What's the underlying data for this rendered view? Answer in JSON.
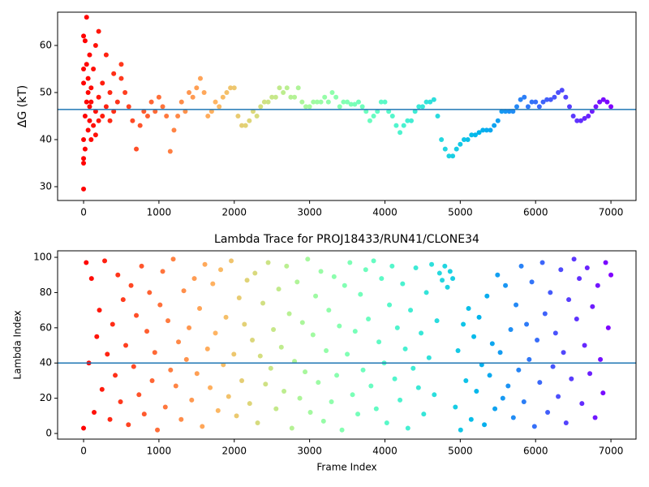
{
  "chart_data": [
    {
      "type": "scatter",
      "ylabel": "ΔG (kT)",
      "colormap": "rainbow_r",
      "xlim": [
        -345,
        7333
      ],
      "ylim": [
        27.07,
        67.07
      ],
      "xticks": [
        0,
        1000,
        2000,
        3000,
        4000,
        5000,
        6000,
        7000
      ],
      "yticks": [
        30,
        40,
        50,
        60
      ],
      "hline": {
        "y": 46.4,
        "color": "#1f77b4"
      },
      "x": [
        0,
        0,
        0,
        0,
        0,
        0,
        0,
        20,
        20,
        20,
        40,
        40,
        40,
        60,
        60,
        60,
        80,
        80,
        80,
        100,
        100,
        100,
        130,
        130,
        160,
        160,
        160,
        200,
        200,
        200,
        250,
        250,
        300,
        300,
        350,
        350,
        400,
        400,
        450,
        500,
        500,
        550,
        600,
        650,
        700,
        750,
        800,
        850,
        900,
        950,
        1000,
        1050,
        1100,
        1150,
        1200,
        1250,
        1300,
        1350,
        1400,
        1450,
        1500,
        1550,
        1600,
        1650,
        1700,
        1750,
        1800,
        1850,
        1900,
        1950,
        2000,
        2050,
        2100,
        2150,
        2200,
        2250,
        2300,
        2350,
        2400,
        2450,
        2500,
        2550,
        2600,
        2650,
        2700,
        2750,
        2800,
        2850,
        2900,
        2950,
        3000,
        3050,
        3100,
        3150,
        3200,
        3250,
        3300,
        3350,
        3400,
        3450,
        3500,
        3550,
        3600,
        3650,
        3700,
        3750,
        3800,
        3850,
        3900,
        3950,
        4000,
        4050,
        4100,
        4150,
        4200,
        4250,
        4300,
        4350,
        4400,
        4450,
        4500,
        4550,
        4600,
        4650,
        4700,
        4750,
        4800,
        4850,
        4900,
        4950,
        5000,
        5050,
        5100,
        5150,
        5200,
        5250,
        5300,
        5350,
        5400,
        5450,
        5500,
        5550,
        5600,
        5650,
        5700,
        5750,
        5800,
        5850,
        5900,
        5950,
        6000,
        6050,
        6100,
        6150,
        6200,
        6250,
        6300,
        6350,
        6400,
        6450,
        6500,
        6550,
        6600,
        6650,
        6700,
        6750,
        6800,
        6850,
        6900,
        6950,
        7000
      ],
      "y": [
        29.5,
        35,
        40,
        52,
        55,
        62,
        36,
        61,
        45,
        38,
        66,
        56,
        48,
        50,
        42,
        53,
        44,
        58,
        47,
        40,
        48,
        51,
        43,
        55,
        46,
        60,
        41,
        63,
        49,
        44,
        45,
        52,
        47,
        58,
        44,
        50,
        46,
        54,
        48,
        53,
        56,
        50,
        47,
        44,
        38,
        43,
        46,
        45,
        48,
        46,
        49,
        47,
        45,
        37.5,
        42,
        45,
        48,
        46,
        50,
        49,
        51,
        53,
        50,
        45,
        46,
        48,
        47,
        49,
        50,
        51,
        51,
        45,
        43,
        43,
        44,
        46,
        45,
        47,
        48,
        48,
        49,
        49,
        51,
        50,
        51,
        49,
        49,
        51,
        48,
        47,
        47,
        48,
        48,
        48,
        49,
        48,
        50,
        49,
        47,
        48,
        48,
        47.5,
        47.5,
        48,
        47,
        46,
        44,
        45,
        46,
        48,
        48,
        46,
        45,
        43,
        41.5,
        43,
        44,
        44,
        46,
        47,
        47,
        48,
        48,
        48.5,
        45,
        40,
        38,
        36.5,
        36.5,
        38,
        39,
        40,
        40,
        41,
        41,
        41.5,
        42,
        42,
        42,
        43,
        44,
        46,
        46,
        46,
        46,
        47,
        48.5,
        49,
        47,
        48,
        48,
        47,
        48,
        48.5,
        48.5,
        49,
        50,
        50.5,
        49,
        47,
        45,
        44,
        44,
        44.5,
        45,
        46,
        47,
        48,
        48.5,
        48,
        47
      ]
    },
    {
      "type": "scatter",
      "title": "Lambda Trace for PROJ18433/RUN41/CLONE34",
      "xlabel": "Frame Index",
      "ylabel": "Lambda Index",
      "colormap": "rainbow_r",
      "xlim": [
        -345,
        7333
      ],
      "ylim": [
        -3.2,
        103.7
      ],
      "xticks": [
        0,
        1000,
        2000,
        3000,
        4000,
        5000,
        6000,
        7000
      ],
      "yticks": [
        0,
        20,
        40,
        60,
        80,
        100
      ],
      "hline": {
        "y": 40,
        "color": "#1f77b4"
      },
      "x": [
        0,
        35,
        70,
        105,
        140,
        175,
        210,
        245,
        280,
        315,
        350,
        385,
        420,
        455,
        490,
        525,
        560,
        595,
        630,
        665,
        700,
        735,
        770,
        805,
        840,
        875,
        910,
        945,
        980,
        1015,
        1050,
        1085,
        1120,
        1155,
        1190,
        1225,
        1260,
        1295,
        1330,
        1365,
        1400,
        1435,
        1470,
        1505,
        1540,
        1575,
        1610,
        1645,
        1680,
        1715,
        1750,
        1785,
        1820,
        1855,
        1890,
        1925,
        1960,
        1995,
        2030,
        2065,
        2100,
        2135,
        2170,
        2205,
        2240,
        2275,
        2310,
        2345,
        2380,
        2415,
        2450,
        2485,
        2520,
        2555,
        2590,
        2625,
        2660,
        2695,
        2730,
        2765,
        2800,
        2835,
        2870,
        2905,
        2940,
        2975,
        3010,
        3045,
        3080,
        3115,
        3150,
        3185,
        3220,
        3255,
        3290,
        3325,
        3360,
        3395,
        3430,
        3465,
        3500,
        3535,
        3570,
        3605,
        3640,
        3675,
        3710,
        3745,
        3780,
        3815,
        3850,
        3885,
        3920,
        3955,
        3990,
        4025,
        4060,
        4095,
        4130,
        4165,
        4200,
        4235,
        4270,
        4305,
        4340,
        4375,
        4410,
        4445,
        4480,
        4515,
        4550,
        4585,
        4620,
        4655,
        4690,
        4725,
        4760,
        4795,
        4830,
        4865,
        4900,
        4935,
        4970,
        5005,
        5040,
        5075,
        5110,
        5145,
        5180,
        5215,
        5250,
        5285,
        5320,
        5355,
        5390,
        5425,
        5460,
        5495,
        5530,
        5565,
        5600,
        5635,
        5670,
        5705,
        5740,
        5775,
        5810,
        5845,
        5880,
        5915,
        5950,
        5985,
        6020,
        6055,
        6090,
        6125,
        6160,
        6195,
        6230,
        6265,
        6300,
        6335,
        6370,
        6405,
        6440,
        6475,
        6510,
        6545,
        6580,
        6615,
        6650,
        6685,
        6720,
        6755,
        6790,
        6825,
        6860,
        6895,
        6930,
        6965,
        7000
      ],
      "y": [
        3,
        97,
        40,
        88,
        12,
        55,
        70,
        25,
        98,
        45,
        8,
        62,
        33,
        90,
        18,
        76,
        50,
        5,
        84,
        38,
        67,
        22,
        95,
        11,
        58,
        80,
        30,
        46,
        2,
        73,
        92,
        15,
        64,
        36,
        99,
        27,
        52,
        8,
        81,
        42,
        60,
        19,
        88,
        34,
        71,
        4,
        96,
        48,
        26,
        85,
        57,
        13,
        93,
        39,
        66,
        21,
        98,
        45,
        10,
        77,
        30,
        62,
        87,
        17,
        53,
        91,
        6,
        44,
        74,
        28,
        97,
        37,
        59,
        14,
        82,
        49,
        24,
        95,
        68,
        3,
        41,
        86,
        20,
        63,
        35,
        99,
        12,
        56,
        78,
        29,
        92,
        7,
        47,
        70,
        18,
        89,
        33,
        61,
        2,
        84,
        45,
        97,
        22,
        58,
        11,
        79,
        36,
        93,
        65,
        27,
        98,
        14,
        52,
        88,
        40,
        6,
        73,
        95,
        31,
        60,
        19,
        85,
        48,
        3,
        70,
        37,
        94,
        26,
        57,
        11,
        80,
        43,
        96,
        22,
        64,
        91,
        87,
        95,
        83,
        92,
        88,
        15,
        47,
        2,
        62,
        30,
        71,
        8,
        55,
        24,
        66,
        39,
        5,
        78,
        33,
        51,
        14,
        90,
        46,
        20,
        84,
        27,
        59,
        9,
        73,
        36,
        95,
        18,
        62,
        42,
        86,
        4,
        53,
        29,
        97,
        68,
        12,
        80,
        38,
        57,
        21,
        93,
        46,
        6,
        76,
        31,
        99,
        65,
        88,
        17,
        50,
        94,
        34,
        72,
        9,
        84,
        42,
        23,
        97,
        60,
        90
      ]
    }
  ]
}
